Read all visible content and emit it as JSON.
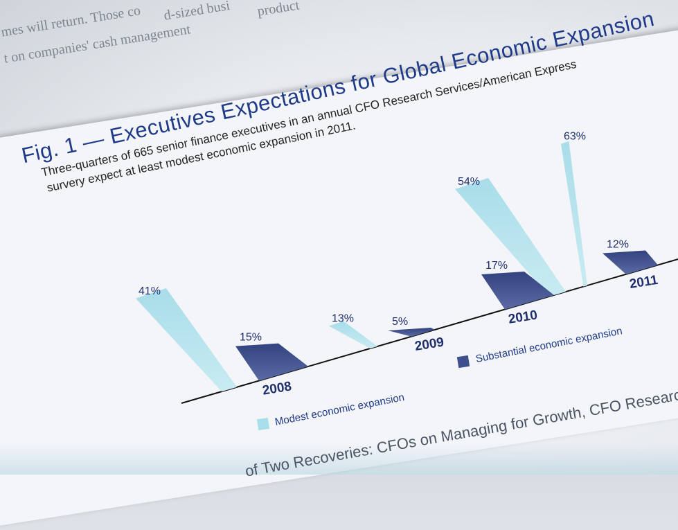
{
  "background_text": {
    "line1": "d-sized busi",
    "line2": "mes will return. Those co",
    "line3": "t on companies' cash management",
    "line4": "product"
  },
  "figure": {
    "title": "Fig. 1 — Executives Expectations for Global Economic Expansion",
    "subtitle_line1": "Three-quarters of 665 senior finance executives in an annual CFO Research Services/American Express",
    "subtitle_line2": "survery expect at least modest economic expansion in 2011.",
    "source": "of Two Recoveries: CFOs on Managing for Growth, CFO Research Services/Ameri"
  },
  "chart_data": {
    "type": "bar",
    "categories": [
      "2008",
      "2009",
      "2010",
      "2011"
    ],
    "series": [
      {
        "name": "Modest economic expansion",
        "values": [
          41,
          13,
          54,
          63
        ],
        "color": "#a9dfea"
      },
      {
        "name": "Substantial economic expansion",
        "values": [
          15,
          5,
          17,
          12
        ],
        "color": "#3e4f8e"
      }
    ],
    "value_labels": {
      "Modest economic expansion": [
        "41%",
        "13%",
        "54%",
        "63%"
      ],
      "Substantial economic expansion": [
        "15%",
        "5%",
        "17%",
        "12%"
      ]
    },
    "ylim": [
      0,
      70
    ],
    "grid": false,
    "legend_position": "bottom"
  }
}
